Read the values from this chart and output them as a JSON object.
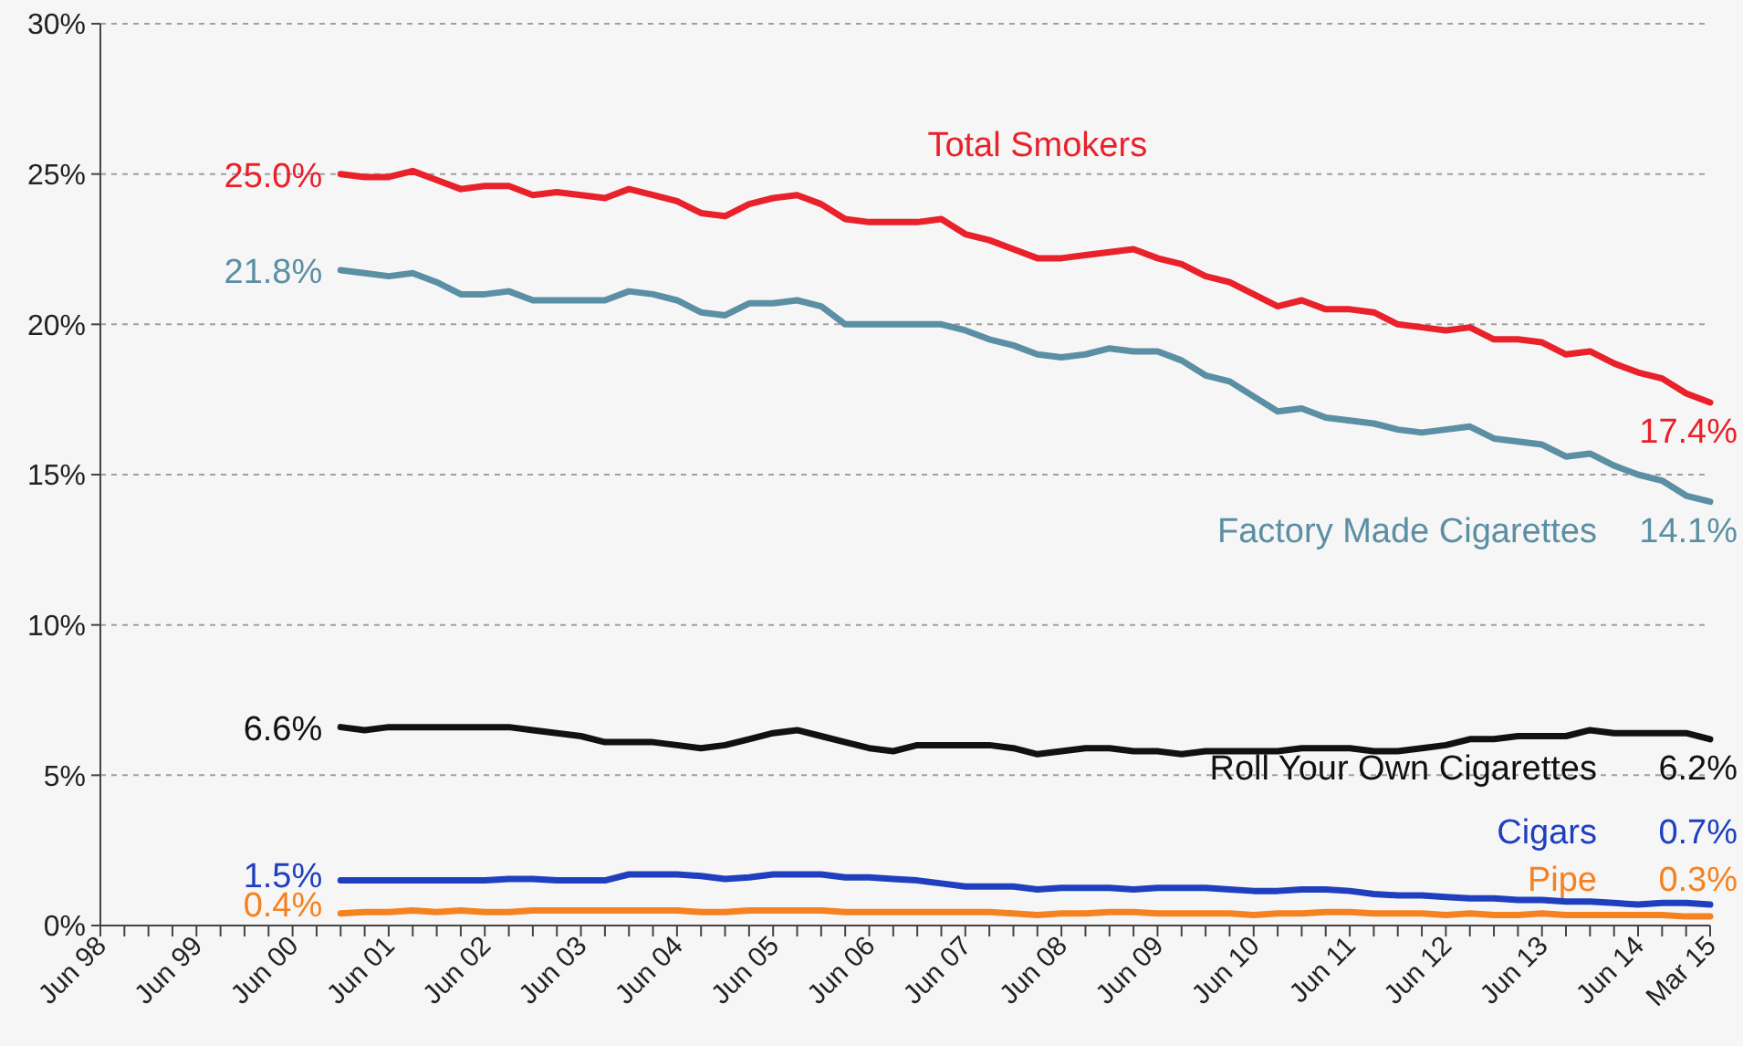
{
  "chart_data": {
    "type": "line",
    "categories": [
      "Jun 98",
      null,
      null,
      null,
      "Jun 99",
      null,
      null,
      null,
      "Jun 00",
      null,
      null,
      null,
      "Jun 01",
      null,
      null,
      null,
      "Jun 02",
      null,
      null,
      null,
      "Jun 03",
      null,
      null,
      null,
      "Jun 04",
      null,
      null,
      null,
      "Jun 05",
      null,
      null,
      null,
      "Jun 06",
      null,
      null,
      null,
      "Jun 07",
      null,
      null,
      null,
      "Jun 08",
      null,
      null,
      null,
      "Jun 09",
      null,
      null,
      null,
      "Jun 10",
      null,
      null,
      null,
      "Jun 11",
      null,
      null,
      null,
      "Jun 12",
      null,
      null,
      null,
      "Jun 13",
      null,
      null,
      null,
      "Jun 14",
      null,
      null,
      "Mar 15"
    ],
    "ylim": [
      0,
      30
    ],
    "yticks": [
      {
        "value": 0,
        "label": "0%"
      },
      {
        "value": 5,
        "label": "5%"
      },
      {
        "value": 10,
        "label": "10%"
      },
      {
        "value": 15,
        "label": "15%"
      },
      {
        "value": 20,
        "label": "20%"
      },
      {
        "value": 25,
        "label": "25%"
      },
      {
        "value": 30,
        "label": "30%"
      }
    ],
    "grid": "y",
    "series": [
      {
        "name": "Total Smokers",
        "color": "#e8212b",
        "values": [
          null,
          null,
          null,
          null,
          null,
          null,
          null,
          null,
          null,
          null,
          25.0,
          24.9,
          24.9,
          25.1,
          24.8,
          24.5,
          24.6,
          24.6,
          24.3,
          24.4,
          24.3,
          24.2,
          24.5,
          24.3,
          24.1,
          23.7,
          23.6,
          24.0,
          24.2,
          24.3,
          24.0,
          23.5,
          23.4,
          23.4,
          23.4,
          23.5,
          23.0,
          22.8,
          22.5,
          22.2,
          22.2,
          22.3,
          22.4,
          22.5,
          22.2,
          22.0,
          21.6,
          21.4,
          21.0,
          20.6,
          20.8,
          20.5,
          20.5,
          20.4,
          20.0,
          19.9,
          19.8,
          19.9,
          19.5,
          19.5,
          19.4,
          19.0,
          19.1,
          18.7,
          18.4,
          18.2,
          17.7,
          17.4
        ],
        "value_labels": [
          null,
          null,
          null,
          null,
          null,
          null,
          null,
          null,
          null,
          null,
          "25.0%",
          null,
          null,
          null,
          null,
          null,
          null,
          null,
          null,
          null,
          null,
          null,
          null,
          null,
          null,
          null,
          null,
          null,
          null,
          null,
          null,
          null,
          null,
          null,
          null,
          null,
          null,
          null,
          null,
          null,
          null,
          null,
          null,
          null,
          null,
          null,
          null,
          null,
          null,
          null,
          null,
          null,
          null,
          null,
          null,
          null,
          null,
          null,
          null,
          null,
          null,
          null,
          null,
          null,
          null,
          null,
          null,
          "17.4%"
        ]
      },
      {
        "name": "Factory Made Cigarettes",
        "color": "#5b8fa3",
        "values": [
          null,
          null,
          null,
          null,
          null,
          null,
          null,
          null,
          null,
          null,
          21.8,
          21.7,
          21.6,
          21.7,
          21.4,
          21.0,
          21.0,
          21.1,
          20.8,
          20.8,
          20.8,
          20.8,
          21.1,
          21.0,
          20.8,
          20.4,
          20.3,
          20.7,
          20.7,
          20.8,
          20.6,
          20.0,
          20.0,
          20.0,
          20.0,
          20.0,
          19.8,
          19.5,
          19.3,
          19.0,
          18.9,
          19.0,
          19.2,
          19.1,
          19.1,
          18.8,
          18.3,
          18.1,
          17.6,
          17.1,
          17.2,
          16.9,
          16.8,
          16.7,
          16.5,
          16.4,
          16.5,
          16.6,
          16.2,
          16.1,
          16.0,
          15.6,
          15.7,
          15.3,
          15.0,
          14.8,
          14.3,
          14.1
        ],
        "value_labels": [
          null,
          null,
          null,
          null,
          null,
          null,
          null,
          null,
          null,
          null,
          "21.8%",
          null,
          null,
          null,
          null,
          null,
          null,
          null,
          null,
          null,
          null,
          null,
          null,
          null,
          null,
          null,
          null,
          null,
          null,
          null,
          null,
          null,
          null,
          null,
          null,
          null,
          null,
          null,
          null,
          null,
          null,
          null,
          null,
          null,
          null,
          null,
          null,
          null,
          null,
          null,
          null,
          null,
          null,
          null,
          null,
          null,
          null,
          null,
          null,
          null,
          null,
          null,
          null,
          null,
          null,
          null,
          null,
          "14.1%"
        ]
      },
      {
        "name": "Roll Your Own Cigarettes",
        "color": "#111111",
        "values": [
          null,
          null,
          null,
          null,
          null,
          null,
          null,
          null,
          null,
          null,
          6.6,
          6.5,
          6.6,
          6.6,
          6.6,
          6.6,
          6.6,
          6.6,
          6.5,
          6.4,
          6.3,
          6.1,
          6.1,
          6.1,
          6.0,
          5.9,
          6.0,
          6.2,
          6.4,
          6.5,
          6.3,
          6.1,
          5.9,
          5.8,
          6.0,
          6.0,
          6.0,
          6.0,
          5.9,
          5.7,
          5.8,
          5.9,
          5.9,
          5.8,
          5.8,
          5.7,
          5.8,
          5.8,
          5.8,
          5.8,
          5.9,
          5.9,
          5.9,
          5.8,
          5.8,
          5.9,
          6.0,
          6.2,
          6.2,
          6.3,
          6.3,
          6.3,
          6.5,
          6.4,
          6.4,
          6.4,
          6.4,
          6.2
        ],
        "value_labels": [
          null,
          null,
          null,
          null,
          null,
          null,
          null,
          null,
          null,
          null,
          "6.6%",
          null,
          null,
          null,
          null,
          null,
          null,
          null,
          null,
          null,
          null,
          null,
          null,
          null,
          null,
          null,
          null,
          null,
          null,
          null,
          null,
          null,
          null,
          null,
          null,
          null,
          null,
          null,
          null,
          null,
          null,
          null,
          null,
          null,
          null,
          null,
          null,
          null,
          null,
          null,
          null,
          null,
          null,
          null,
          null,
          null,
          null,
          null,
          null,
          null,
          null,
          null,
          null,
          null,
          null,
          null,
          null,
          "6.2%"
        ]
      },
      {
        "name": "Cigars",
        "color": "#1f3fbf",
        "values": [
          null,
          null,
          null,
          null,
          null,
          null,
          null,
          null,
          null,
          null,
          1.5,
          1.5,
          1.5,
          1.5,
          1.5,
          1.5,
          1.5,
          1.55,
          1.55,
          1.5,
          1.5,
          1.5,
          1.7,
          1.7,
          1.7,
          1.65,
          1.55,
          1.6,
          1.7,
          1.7,
          1.7,
          1.6,
          1.6,
          1.55,
          1.5,
          1.4,
          1.3,
          1.3,
          1.3,
          1.2,
          1.25,
          1.25,
          1.25,
          1.2,
          1.25,
          1.25,
          1.25,
          1.2,
          1.15,
          1.15,
          1.2,
          1.2,
          1.15,
          1.05,
          1.0,
          1.0,
          0.95,
          0.9,
          0.9,
          0.85,
          0.85,
          0.8,
          0.8,
          0.75,
          0.7,
          0.75,
          0.75,
          0.7
        ],
        "value_labels": [
          null,
          null,
          null,
          null,
          null,
          null,
          null,
          null,
          null,
          null,
          "1.5%",
          null,
          null,
          null,
          null,
          null,
          null,
          null,
          null,
          null,
          null,
          null,
          null,
          null,
          null,
          null,
          null,
          null,
          null,
          null,
          null,
          null,
          null,
          null,
          null,
          null,
          null,
          null,
          null,
          null,
          null,
          null,
          null,
          null,
          null,
          null,
          null,
          null,
          null,
          null,
          null,
          null,
          null,
          null,
          null,
          null,
          null,
          null,
          null,
          null,
          null,
          null,
          null,
          null,
          null,
          null,
          null,
          "0.7%"
        ]
      },
      {
        "name": "Pipe",
        "color": "#f58220",
        "values": [
          null,
          null,
          null,
          null,
          null,
          null,
          null,
          null,
          null,
          null,
          0.4,
          0.45,
          0.45,
          0.5,
          0.45,
          0.5,
          0.45,
          0.45,
          0.5,
          0.5,
          0.5,
          0.5,
          0.5,
          0.5,
          0.5,
          0.45,
          0.45,
          0.5,
          0.5,
          0.5,
          0.5,
          0.45,
          0.45,
          0.45,
          0.45,
          0.45,
          0.45,
          0.45,
          0.4,
          0.35,
          0.4,
          0.4,
          0.45,
          0.45,
          0.4,
          0.4,
          0.4,
          0.4,
          0.35,
          0.4,
          0.4,
          0.45,
          0.45,
          0.4,
          0.4,
          0.4,
          0.35,
          0.4,
          0.35,
          0.35,
          0.4,
          0.35,
          0.35,
          0.35,
          0.35,
          0.35,
          0.3,
          0.3
        ],
        "value_labels": [
          null,
          null,
          null,
          null,
          null,
          null,
          null,
          null,
          null,
          null,
          "0.4%",
          null,
          null,
          null,
          null,
          null,
          null,
          null,
          null,
          null,
          null,
          null,
          null,
          null,
          null,
          null,
          null,
          null,
          null,
          null,
          null,
          null,
          null,
          null,
          null,
          null,
          null,
          null,
          null,
          null,
          null,
          null,
          null,
          null,
          null,
          null,
          null,
          null,
          null,
          null,
          null,
          null,
          null,
          null,
          null,
          null,
          null,
          null,
          null,
          null,
          null,
          null,
          null,
          null,
          null,
          null,
          null,
          "0.3%"
        ]
      }
    ]
  }
}
